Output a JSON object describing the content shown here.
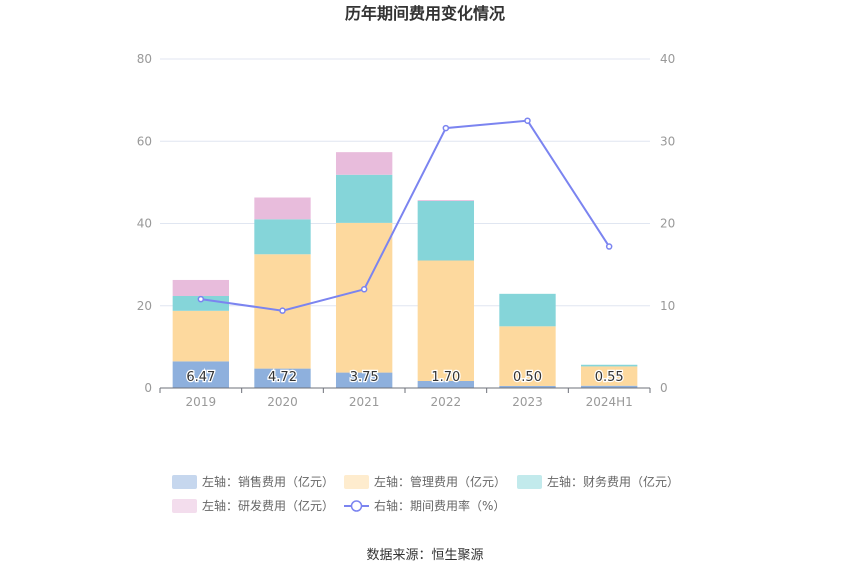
{
  "chart_data": {
    "type": "bar",
    "title": "历年期间费用变化情况",
    "categories": [
      "2019",
      "2020",
      "2021",
      "2022",
      "2023",
      "2024H1"
    ],
    "series": [
      {
        "name": "左轴：销售费用（亿元）",
        "axis": "left",
        "color": "#8eb0dd",
        "values": [
          6.47,
          4.72,
          3.75,
          1.7,
          0.5,
          0.55
        ],
        "labels": [
          "6.47",
          "4.72",
          "3.75",
          "1.70",
          "0.50",
          "0.55"
        ]
      },
      {
        "name": "左轴：管理费用（亿元）",
        "axis": "left",
        "color": "#fdd99e",
        "values": [
          12.3,
          27.8,
          36.4,
          29.3,
          14.5,
          4.7
        ]
      },
      {
        "name": "左轴：财务费用（亿元）",
        "axis": "left",
        "color": "#85d5d9",
        "values": [
          3.6,
          8.5,
          11.7,
          14.5,
          7.9,
          0.4
        ]
      },
      {
        "name": "左轴：研发费用（亿元）",
        "axis": "left",
        "color": "#e8bcdc",
        "values": [
          3.9,
          5.3,
          5.5,
          0.2,
          0.0,
          0.0
        ]
      },
      {
        "name": "右轴：期间费用率（%）",
        "axis": "right",
        "type": "line",
        "color": "#7b84f0",
        "values": [
          10.8,
          9.4,
          12.0,
          31.6,
          32.5,
          17.2
        ]
      }
    ],
    "yleft_ticks": [
      "0",
      "20",
      "40",
      "60",
      "80"
    ],
    "yright_ticks": [
      "0",
      "10",
      "20",
      "30",
      "40"
    ],
    "ylim_left": [
      0,
      80
    ],
    "ylim_right": [
      0,
      40
    ],
    "grid": true,
    "legend_position": "bottom"
  },
  "footer": {
    "source": "数据来源：恒生聚源"
  }
}
